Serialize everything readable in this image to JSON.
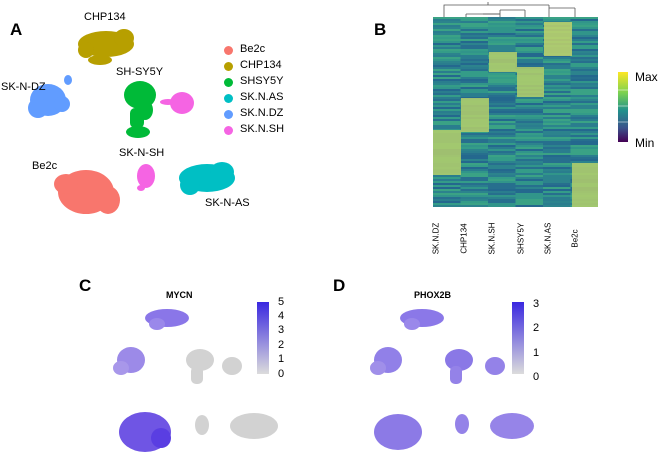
{
  "panels": {
    "a": {
      "letter": "A",
      "cluster_labels": {
        "chp134": "CHP134",
        "sh_sy5y": "SH-SY5Y",
        "sk_n_dz": "SK-N-DZ",
        "be2c": "Be2c",
        "sk_n_sh": "SK-N-SH",
        "sk_n_as": "SK-N-AS"
      },
      "legend": [
        {
          "label": "Be2c",
          "color": "#f8766d"
        },
        {
          "label": "CHP134",
          "color": "#b79f00"
        },
        {
          "label": "SHSY5Y",
          "color": "#00ba38"
        },
        {
          "label": "SK.N.AS",
          "color": "#00bfc4"
        },
        {
          "label": "SK.N.DZ",
          "color": "#619cff"
        },
        {
          "label": "SK.N.SH",
          "color": "#f564e3"
        }
      ]
    },
    "b": {
      "letter": "B",
      "legend_max": "Max",
      "legend_min": "Min",
      "columns": [
        "SK.N.DZ",
        "CHP134",
        "SK.N.SH",
        "SHSY5Y",
        "SK.N.AS",
        "Be2c"
      ]
    },
    "c": {
      "letter": "C",
      "title": "MYCN",
      "scale_ticks": [
        "5",
        "4",
        "3",
        "2",
        "1",
        "0"
      ]
    },
    "d": {
      "letter": "D",
      "title": "PHOX2B",
      "scale_ticks": [
        "3",
        "2",
        "1",
        "0"
      ]
    }
  }
}
